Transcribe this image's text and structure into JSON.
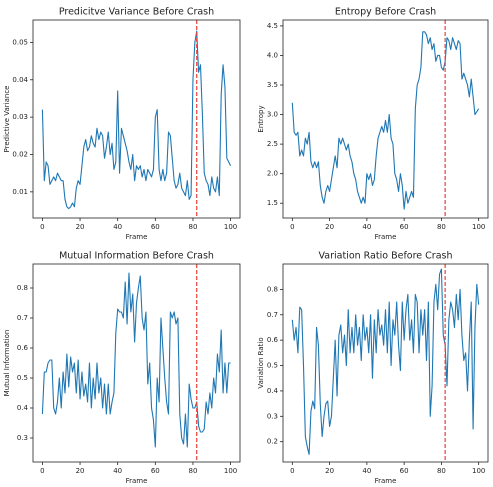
{
  "chart_data": [
    {
      "type": "line",
      "title": "Predicitve Variance Before Crash",
      "xlabel": "Frame",
      "ylabel": "Predictive Variance",
      "x": [
        0,
        1,
        2,
        3,
        4,
        5,
        6,
        7,
        8,
        9,
        10,
        11,
        12,
        13,
        14,
        15,
        16,
        17,
        18,
        19,
        20,
        21,
        22,
        23,
        24,
        25,
        26,
        27,
        28,
        29,
        30,
        31,
        32,
        33,
        34,
        35,
        36,
        37,
        38,
        39,
        40,
        41,
        42,
        43,
        44,
        45,
        46,
        47,
        48,
        49,
        50,
        51,
        52,
        53,
        54,
        55,
        56,
        57,
        58,
        59,
        60,
        61,
        62,
        63,
        64,
        65,
        66,
        67,
        68,
        69,
        70,
        71,
        72,
        73,
        74,
        75,
        76,
        77,
        78,
        79,
        80,
        81,
        82,
        83,
        84,
        85,
        86,
        87,
        88,
        89,
        90,
        91,
        92,
        93,
        94,
        95,
        96,
        97,
        98,
        99,
        100
      ],
      "values": [
        0.032,
        0.013,
        0.018,
        0.017,
        0.012,
        0.013,
        0.014,
        0.013,
        0.015,
        0.014,
        0.013,
        0.013,
        0.008,
        0.006,
        0.0055,
        0.006,
        0.007,
        0.006,
        0.011,
        0.013,
        0.012,
        0.017,
        0.022,
        0.024,
        0.021,
        0.022,
        0.025,
        0.023,
        0.022,
        0.027,
        0.024,
        0.026,
        0.025,
        0.019,
        0.022,
        0.026,
        0.02,
        0.023,
        0.016,
        0.018,
        0.037,
        0.015,
        0.027,
        0.025,
        0.023,
        0.021,
        0.018,
        0.016,
        0.02,
        0.013,
        0.017,
        0.016,
        0.017,
        0.014,
        0.016,
        0.013,
        0.016,
        0.015,
        0.014,
        0.016,
        0.03,
        0.032,
        0.016,
        0.013,
        0.016,
        0.013,
        0.015,
        0.026,
        0.025,
        0.019,
        0.013,
        0.011,
        0.012,
        0.015,
        0.011,
        0.01,
        0.009,
        0.013,
        0.008,
        0.009,
        0.04,
        0.05,
        0.053,
        0.042,
        0.044,
        0.031,
        0.015,
        0.013,
        0.012,
        0.009,
        0.014,
        0.011,
        0.01,
        0.014,
        0.009,
        0.036,
        0.044,
        0.038,
        0.019,
        0.018,
        0.017
      ],
      "color": "#1f77b4",
      "vline": 82,
      "vline_color": "#e8413a",
      "xlim": [
        -5,
        105
      ],
      "xticks": [
        0,
        20,
        40,
        60,
        80,
        100
      ],
      "ylim": [
        0.003,
        0.056
      ],
      "yticks": [
        0.01,
        0.02,
        0.03,
        0.04,
        0.05
      ]
    },
    {
      "type": "line",
      "title": "Entropy Before Crash",
      "xlabel": "Frame",
      "ylabel": "Entropy",
      "x": [
        0,
        1,
        2,
        3,
        4,
        5,
        6,
        7,
        8,
        9,
        10,
        11,
        12,
        13,
        14,
        15,
        16,
        17,
        18,
        19,
        20,
        21,
        22,
        23,
        24,
        25,
        26,
        27,
        28,
        29,
        30,
        31,
        32,
        33,
        34,
        35,
        36,
        37,
        38,
        39,
        40,
        41,
        42,
        43,
        44,
        45,
        46,
        47,
        48,
        49,
        50,
        51,
        52,
        53,
        54,
        55,
        56,
        57,
        58,
        59,
        60,
        61,
        62,
        63,
        64,
        65,
        66,
        67,
        68,
        69,
        70,
        71,
        72,
        73,
        74,
        75,
        76,
        77,
        78,
        79,
        80,
        81,
        82,
        83,
        84,
        85,
        86,
        87,
        88,
        89,
        90,
        91,
        92,
        93,
        94,
        95,
        96,
        97,
        98,
        99,
        100
      ],
      "values": [
        3.2,
        2.7,
        2.65,
        2.7,
        2.3,
        2.4,
        2.3,
        2.6,
        2.5,
        2.7,
        2.2,
        2.1,
        2.2,
        2.1,
        2.2,
        1.8,
        1.6,
        1.5,
        1.7,
        1.8,
        1.7,
        1.9,
        2.1,
        2.3,
        2.1,
        2.6,
        2.5,
        2.6,
        2.5,
        2.4,
        2.5,
        2.3,
        2.2,
        2.0,
        1.9,
        1.7,
        1.6,
        1.5,
        1.6,
        1.5,
        2.0,
        1.9,
        2.0,
        1.8,
        1.9,
        2.3,
        2.6,
        2.7,
        2.8,
        2.7,
        2.9,
        2.7,
        3.0,
        2.6,
        2.5,
        2.0,
        1.9,
        1.7,
        2.0,
        1.8,
        1.4,
        1.7,
        1.5,
        1.6,
        1.7,
        1.6,
        3.1,
        3.5,
        3.6,
        3.8,
        4.4,
        4.4,
        4.35,
        4.2,
        4.3,
        4.1,
        4.2,
        3.9,
        4.0,
        4.0,
        3.8,
        3.75,
        3.9,
        4.3,
        4.25,
        4.1,
        4.3,
        4.2,
        4.1,
        4.25,
        4.2,
        3.6,
        3.7,
        3.6,
        3.5,
        3.3,
        3.6,
        3.3,
        3.0,
        3.05,
        3.1
      ],
      "color": "#1f77b4",
      "vline": 82,
      "vline_color": "#e8413a",
      "xlim": [
        -5,
        105
      ],
      "xticks": [
        0,
        20,
        40,
        60,
        80,
        100
      ],
      "ylim": [
        1.25,
        4.6
      ],
      "yticks": [
        1.5,
        {
          "value": 2,
          "label": "2.0"
        },
        2.5,
        {
          "value": 3,
          "label": "3.0"
        },
        3.5,
        {
          "value": 4,
          "label": "4.0"
        },
        4.5
      ]
    },
    {
      "type": "line",
      "title": "Mutual Information Before Crash",
      "xlabel": "Frame",
      "ylabel": "Mutual Information",
      "x": [
        0,
        1,
        2,
        3,
        4,
        5,
        6,
        7,
        8,
        9,
        10,
        11,
        12,
        13,
        14,
        15,
        16,
        17,
        18,
        19,
        20,
        21,
        22,
        23,
        24,
        25,
        26,
        27,
        28,
        29,
        30,
        31,
        32,
        33,
        34,
        35,
        36,
        37,
        38,
        39,
        40,
        41,
        42,
        43,
        44,
        45,
        46,
        47,
        48,
        49,
        50,
        51,
        52,
        53,
        54,
        55,
        56,
        57,
        58,
        59,
        60,
        61,
        62,
        63,
        64,
        65,
        66,
        67,
        68,
        69,
        70,
        71,
        72,
        73,
        74,
        75,
        76,
        77,
        78,
        79,
        80,
        81,
        82,
        83,
        84,
        85,
        86,
        87,
        88,
        89,
        90,
        91,
        92,
        93,
        94,
        95,
        96,
        97,
        98,
        99,
        100
      ],
      "values": [
        0.38,
        0.52,
        0.52,
        0.55,
        0.56,
        0.56,
        0.4,
        0.38,
        0.42,
        0.5,
        0.4,
        0.52,
        0.45,
        0.58,
        0.47,
        0.57,
        0.52,
        0.55,
        0.45,
        0.56,
        0.43,
        0.52,
        0.44,
        0.48,
        0.42,
        0.55,
        0.4,
        0.5,
        0.43,
        0.55,
        0.45,
        0.5,
        0.4,
        0.48,
        0.38,
        0.48,
        0.38,
        0.42,
        0.45,
        0.65,
        0.73,
        0.72,
        0.72,
        0.7,
        0.82,
        0.68,
        0.85,
        0.72,
        0.78,
        0.62,
        0.75,
        0.8,
        0.84,
        0.7,
        0.66,
        0.72,
        0.48,
        0.55,
        0.4,
        0.36,
        0.27,
        0.5,
        0.42,
        0.7,
        0.6,
        0.5,
        0.42,
        0.38,
        0.72,
        0.7,
        0.72,
        0.68,
        0.7,
        0.38,
        0.3,
        0.28,
        0.38,
        0.27,
        0.48,
        0.43,
        0.4,
        0.4,
        0.42,
        0.34,
        0.32,
        0.32,
        0.33,
        0.42,
        0.38,
        0.45,
        0.4,
        0.5,
        0.45,
        0.58,
        0.52,
        0.66,
        0.45,
        0.55,
        0.45,
        0.55,
        0.55
      ],
      "color": "#1f77b4",
      "vline": 82,
      "vline_color": "#e8413a",
      "xlim": [
        -5,
        105
      ],
      "xticks": [
        0,
        20,
        40,
        60,
        80,
        100
      ],
      "ylim": [
        0.22,
        0.88
      ],
      "yticks": [
        0.3,
        0.4,
        0.5,
        0.6,
        0.7,
        0.8
      ]
    },
    {
      "type": "line",
      "title": "Variation Ratio Before Crash",
      "xlabel": "Frame",
      "ylabel": "Variation Ratio",
      "x": [
        0,
        1,
        2,
        3,
        4,
        5,
        6,
        7,
        8,
        9,
        10,
        11,
        12,
        13,
        14,
        15,
        16,
        17,
        18,
        19,
        20,
        21,
        22,
        23,
        24,
        25,
        26,
        27,
        28,
        29,
        30,
        31,
        32,
        33,
        34,
        35,
        36,
        37,
        38,
        39,
        40,
        41,
        42,
        43,
        44,
        45,
        46,
        47,
        48,
        49,
        50,
        51,
        52,
        53,
        54,
        55,
        56,
        57,
        58,
        59,
        60,
        61,
        62,
        63,
        64,
        65,
        66,
        67,
        68,
        69,
        70,
        71,
        72,
        73,
        74,
        75,
        76,
        77,
        78,
        79,
        80,
        81,
        82,
        83,
        84,
        85,
        86,
        87,
        88,
        89,
        90,
        91,
        92,
        93,
        94,
        95,
        96,
        97,
        98,
        99,
        100
      ],
      "values": [
        0.68,
        0.6,
        0.65,
        0.55,
        0.73,
        0.72,
        0.5,
        0.22,
        0.18,
        0.15,
        0.32,
        0.36,
        0.33,
        0.65,
        0.58,
        0.35,
        0.22,
        0.3,
        0.35,
        0.36,
        0.26,
        0.3,
        0.45,
        0.6,
        0.38,
        0.62,
        0.66,
        0.55,
        0.62,
        0.5,
        0.72,
        0.55,
        0.65,
        0.55,
        0.7,
        0.58,
        0.65,
        0.52,
        0.7,
        0.6,
        0.65,
        0.55,
        0.7,
        0.45,
        0.68,
        0.55,
        0.72,
        0.62,
        0.66,
        0.58,
        0.72,
        0.55,
        0.75,
        0.5,
        0.68,
        0.62,
        0.75,
        0.58,
        0.48,
        0.75,
        0.6,
        0.72,
        0.78,
        0.6,
        0.68,
        0.55,
        0.78,
        0.75,
        0.55,
        0.72,
        0.62,
        0.72,
        0.52,
        0.75,
        0.3,
        0.42,
        0.75,
        0.82,
        0.72,
        0.86,
        0.88,
        0.62,
        0.58,
        0.42,
        0.68,
        0.75,
        0.72,
        0.65,
        0.78,
        0.68,
        0.8,
        0.62,
        0.52,
        0.55,
        0.4,
        0.6,
        0.75,
        0.25,
        0.65,
        0.82,
        0.74
      ],
      "color": "#1f77b4",
      "vline": 82,
      "vline_color": "#e8413a",
      "xlim": [
        -5,
        105
      ],
      "xticks": [
        0,
        20,
        40,
        60,
        80,
        100
      ],
      "ylim": [
        0.12,
        0.9
      ],
      "yticks": [
        0.2,
        0.3,
        0.4,
        0.5,
        0.6,
        0.7,
        0.8
      ]
    }
  ]
}
